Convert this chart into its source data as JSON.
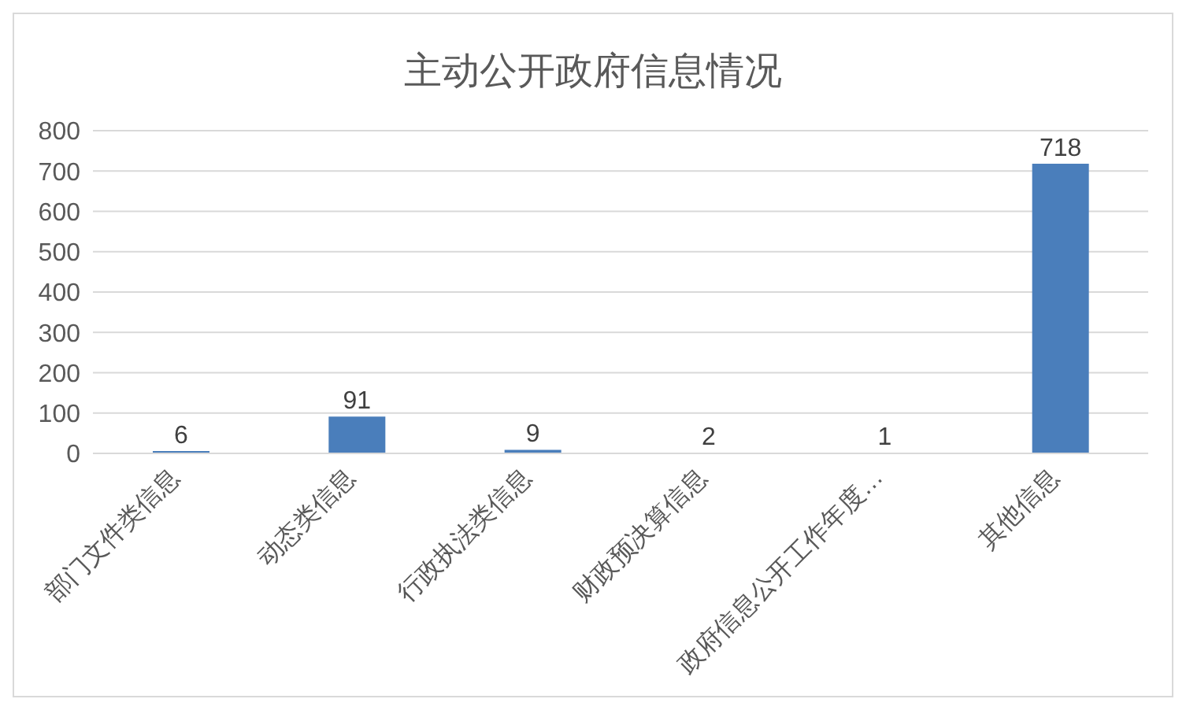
{
  "chart_data": {
    "type": "bar",
    "title": "主动公开政府信息情况",
    "categories": [
      "部门文件类信息",
      "动态类信息",
      "行政执法类信息",
      "财政预决算信息",
      "政府信息公开工作年度…",
      "其他信息"
    ],
    "values": [
      6,
      91,
      9,
      2,
      1,
      718
    ],
    "color": "#4a7ebb",
    "ylim": [
      0,
      800
    ],
    "yticks": [
      0,
      100,
      200,
      300,
      400,
      500,
      600,
      700,
      800
    ],
    "grid": "y",
    "data_labels": true
  }
}
